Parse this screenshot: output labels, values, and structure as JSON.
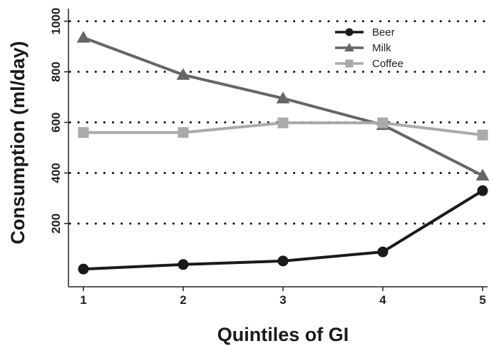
{
  "chart_data": {
    "type": "line",
    "xlabel": "Quintiles of GI",
    "ylabel": "Consumption (ml/day)",
    "x": [
      1,
      2,
      3,
      4,
      5
    ],
    "x_ticks": [
      "1",
      "2",
      "3",
      "4",
      "5"
    ],
    "xlim": [
      0.85,
      5.05
    ],
    "ylim": [
      -50,
      1050
    ],
    "y_ticks": [
      200,
      400,
      600,
      800,
      1000
    ],
    "y_tick_labels": [
      "200",
      "400",
      "600",
      "800",
      "1000"
    ],
    "grid": "horizontal dotted",
    "legend_position": "top-right",
    "series": [
      {
        "name": "Beer",
        "values": [
          20,
          38,
          52,
          88,
          330
        ],
        "color": "#1a1a1a",
        "marker": "circle"
      },
      {
        "name": "Milk",
        "values": [
          935,
          788,
          695,
          590,
          390
        ],
        "color": "#666666",
        "marker": "triangle"
      },
      {
        "name": "Coffee",
        "values": [
          560,
          560,
          598,
          598,
          550
        ],
        "color": "#aaaaaa",
        "marker": "square"
      }
    ]
  }
}
